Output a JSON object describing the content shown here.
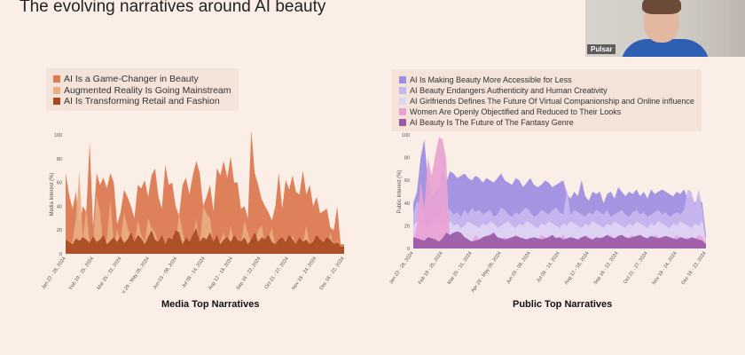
{
  "slide": {
    "title": "The evolving narratives around AI beauty"
  },
  "webcam": {
    "name": "Pulsar"
  },
  "colors": {
    "background": "#fbeee6",
    "panel": "#f4e3d9"
  },
  "chart_data": [
    {
      "type": "area",
      "title": "Media Top Narratives",
      "ylabel": "Media Interest (%)",
      "ylim": [
        0,
        100
      ],
      "yticks": [
        0,
        20,
        40,
        60,
        80,
        100
      ],
      "grid": false,
      "legend_position": "top-left",
      "x_tick_labels": [
        "Jan 22 - 28, 2024",
        "Feb 19 - 25, 2024",
        "Mar 25 - 31, 2024",
        "Apr 29 - May 05, 2024",
        "Jun 03 - 09, 2024",
        "Jul 08 - 14, 2024",
        "Aug 12 - 18, 2024",
        "Sep 16 - 22, 2024",
        "Oct 21 - 27, 2024",
        "Nov 18 - 24, 2024",
        "Dec 16 - 22, 2024"
      ],
      "series": [
        {
          "name": "AI Is a Game-Changer in Beauty",
          "color": "#dc7a52",
          "values": [
            68,
            50,
            38,
            52,
            22,
            40,
            35,
            94,
            22,
            68,
            58,
            64,
            55,
            68,
            60,
            25,
            35,
            54,
            48,
            40,
            30,
            58,
            55,
            62,
            48,
            66,
            72,
            48,
            38,
            75,
            58,
            60,
            40,
            32,
            58,
            64,
            50,
            66,
            78,
            68,
            40,
            48,
            58,
            36,
            72,
            66,
            78,
            64,
            82,
            60,
            60,
            38,
            40,
            30,
            104,
            68,
            58,
            46,
            40,
            35,
            28,
            40,
            68,
            38,
            62,
            54,
            66,
            52,
            50,
            70,
            50,
            58,
            40,
            48,
            34,
            36,
            38,
            22,
            20,
            40,
            8,
            8
          ]
        },
        {
          "name": "Augmented Reality Is Going Mainstream",
          "color": "#e8ad82",
          "values": [
            6,
            8,
            10,
            30,
            70,
            12,
            38,
            8,
            10,
            50,
            35,
            6,
            12,
            45,
            8,
            20,
            10,
            35,
            22,
            15,
            8,
            28,
            16,
            10,
            30,
            22,
            18,
            8,
            14,
            6,
            10,
            12,
            6,
            34,
            18,
            8,
            6,
            14,
            30,
            6,
            40,
            34,
            30,
            6,
            8,
            10,
            18,
            6,
            24,
            8,
            14,
            8,
            28,
            18,
            8,
            8,
            20,
            24,
            8,
            14,
            22,
            6,
            10,
            8,
            12,
            6,
            16,
            6,
            10,
            8,
            24,
            6,
            6,
            10,
            8,
            12,
            6,
            18,
            6,
            12,
            4,
            4
          ]
        },
        {
          "name": "AI Is Transforming Retail and Fashion",
          "color": "#a84a22",
          "values": [
            12,
            10,
            8,
            13,
            11,
            14,
            12,
            9,
            15,
            10,
            12,
            16,
            8,
            11,
            14,
            10,
            15,
            9,
            12,
            18,
            10,
            16,
            13,
            8,
            14,
            20,
            12,
            10,
            16,
            8,
            14,
            12,
            20,
            18,
            8,
            14,
            10,
            16,
            22,
            10,
            14,
            12,
            18,
            10,
            16,
            8,
            12,
            14,
            10,
            16,
            12,
            10,
            14,
            8,
            12,
            18,
            10,
            14,
            12,
            16,
            10,
            8,
            12,
            14,
            10,
            16,
            12,
            8,
            14,
            10,
            12,
            8,
            10,
            16,
            12,
            10,
            14,
            12,
            8,
            10,
            6,
            6
          ]
        }
      ]
    },
    {
      "type": "area",
      "title": "Public Top Narratives",
      "ylabel": "Public Interest (%)",
      "ylim": [
        0,
        100
      ],
      "yticks": [
        0,
        20,
        40,
        60,
        80,
        100
      ],
      "grid": false,
      "legend_position": "top-left",
      "x_tick_labels": [
        "Jan 22 - 28, 2024",
        "Feb 19 - 25, 2024",
        "Mar 25 - 31, 2024",
        "Apr 29 - May 05, 2024",
        "Jun 03 - 09, 2024",
        "Jul 08 - 14, 2024",
        "Aug 12 - 18, 2024",
        "Sep 16 - 22, 2024",
        "Oct 21 - 27, 2024",
        "Nov 18 - 24, 2024",
        "Dec 16 - 22, 2024"
      ],
      "series": [
        {
          "name": "AI Is Making Beauty More Accessible for Less",
          "color": "#a08ee0",
          "values": [
            40,
            50,
            80,
            96,
            60,
            45,
            50,
            55,
            70,
            58,
            68,
            66,
            62,
            64,
            66,
            62,
            60,
            64,
            62,
            58,
            62,
            60,
            58,
            62,
            66,
            60,
            58,
            56,
            62,
            60,
            54,
            58,
            62,
            56,
            54,
            56,
            60,
            58,
            54,
            56,
            58,
            60,
            48,
            44,
            50,
            46,
            60,
            46,
            42,
            50,
            48,
            50,
            40,
            48,
            50,
            44,
            54,
            50,
            46,
            50,
            48,
            52,
            46,
            50,
            44,
            52,
            48,
            50,
            52,
            50,
            48,
            46,
            50,
            48,
            52,
            44,
            46,
            40,
            44,
            40,
            12
          ]
        },
        {
          "name": "AI Beauty Endangers Authenticity and Human Creativity",
          "color": "#c8b6ee",
          "values": [
            30,
            42,
            36,
            28,
            18,
            26,
            30,
            24,
            40,
            36,
            34,
            30,
            32,
            28,
            34,
            30,
            36,
            32,
            34,
            30,
            32,
            34,
            28,
            30,
            36,
            34,
            30,
            28,
            32,
            30,
            34,
            36,
            32,
            28,
            30,
            34,
            32,
            30,
            34,
            36,
            32,
            30,
            52,
            30,
            34,
            32,
            30,
            28,
            32,
            30,
            34,
            32,
            30,
            34,
            28,
            30,
            32,
            34,
            30,
            28,
            32,
            34,
            30,
            32,
            28,
            30,
            32,
            34,
            30,
            32,
            28,
            30,
            32,
            30,
            34,
            52,
            50,
            38,
            52,
            34,
            8
          ]
        },
        {
          "name": "AI Girlfriends Defines The Future Of Virtual Companionship and Online influence",
          "color": "#ded4f4",
          "values": [
            20,
            24,
            22,
            18,
            20,
            22,
            24,
            20,
            18,
            22,
            24,
            20,
            22,
            18,
            20,
            24,
            22,
            20,
            18,
            22,
            20,
            24,
            22,
            18,
            20,
            22,
            24,
            20,
            18,
            22,
            20,
            24,
            22,
            20,
            18,
            22,
            20,
            24,
            22,
            20,
            18,
            22,
            20,
            24,
            22,
            20,
            18,
            22,
            20,
            24,
            22,
            20,
            18,
            22,
            20,
            24,
            22,
            20,
            18,
            22,
            20,
            24,
            22,
            20,
            18,
            22,
            20,
            24,
            22,
            20,
            18,
            22,
            20,
            24,
            22,
            20,
            18,
            22,
            20,
            24,
            6
          ]
        },
        {
          "name": "Women Are Openly Objectified and Reduced to Their Looks",
          "color": "#e9a2d2",
          "values": [
            8,
            20,
            60,
            36,
            80,
            64,
            82,
            98,
            96,
            78,
            6,
            4,
            8,
            6,
            10,
            8,
            6,
            12,
            8,
            6,
            10,
            8,
            12,
            6,
            8,
            10,
            6,
            8,
            12,
            10,
            6,
            8,
            10,
            6,
            8,
            12,
            10,
            8,
            6,
            10,
            8,
            12,
            6,
            8,
            10,
            6,
            8,
            12,
            10,
            8,
            6,
            10,
            8,
            6,
            12,
            8,
            10,
            6,
            8,
            10,
            12,
            8,
            6,
            10,
            8,
            6,
            12,
            10,
            8,
            6,
            10,
            8,
            12,
            6,
            8,
            10,
            6,
            8,
            12,
            10,
            4
          ]
        },
        {
          "name": "AI Beauty Is The Future of The Fantasy Genre",
          "color": "#9a5aa6",
          "values": [
            10,
            9,
            8,
            7,
            10,
            9,
            8,
            6,
            9,
            14,
            12,
            14,
            15,
            14,
            10,
            8,
            6,
            7,
            8,
            10,
            11,
            12,
            14,
            10,
            9,
            8,
            9,
            10,
            11,
            10,
            9,
            8,
            9,
            10,
            9,
            8,
            9,
            10,
            12,
            9,
            10,
            8,
            9,
            10,
            9,
            8,
            10,
            11,
            9,
            8,
            10,
            9,
            10,
            12,
            10,
            9,
            11,
            12,
            10,
            9,
            10,
            11,
            12,
            10,
            9,
            11,
            10,
            9,
            10,
            11,
            10,
            9,
            8,
            10,
            9,
            8,
            10,
            9,
            8,
            7,
            4
          ]
        }
      ]
    }
  ]
}
